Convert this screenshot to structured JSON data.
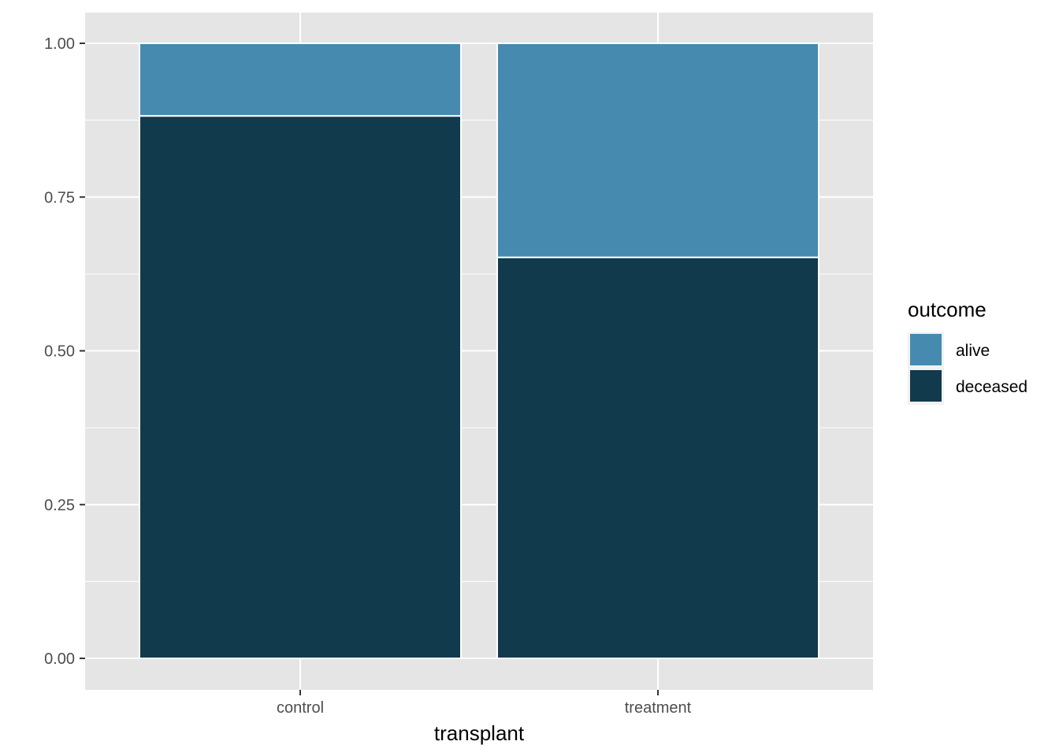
{
  "chart_data": {
    "type": "bar",
    "stacked": "fill",
    "categories": [
      "control",
      "treatment"
    ],
    "series": [
      {
        "name": "alive",
        "values": [
          0.118,
          0.348
        ],
        "color": "#468ab0"
      },
      {
        "name": "deceased",
        "values": [
          0.882,
          0.652
        ],
        "color": "#123a4d"
      }
    ],
    "xlabel": "transplant",
    "ylabel": "",
    "ylim": [
      0,
      1
    ],
    "yticks": [
      "0.00",
      "0.25",
      "0.50",
      "0.75",
      "1.00"
    ],
    "ytick_values": [
      0,
      0.25,
      0.5,
      0.75,
      1.0
    ],
    "grid": true,
    "legend": {
      "title": "outcome",
      "position": "right",
      "items": [
        "alive",
        "deceased"
      ]
    },
    "colors": {
      "panel_background": "#e5e5e5",
      "grid": "#ffffff",
      "bar_outline": "#ffffff"
    }
  }
}
